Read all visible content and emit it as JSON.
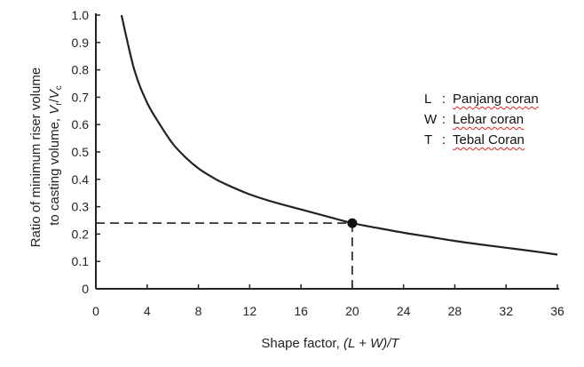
{
  "chart_data": {
    "type": "line",
    "xlabel": "Shape factor, (L + W)/T",
    "ylabel": "Ratio of minimum riser volume to casting volume, Vr/Vc",
    "ylabel_line1": "Ratio of minimum riser volume",
    "ylabel_line2_prefix": "to casting volume, ",
    "ylabel_var1": "V",
    "ylabel_sub1": "r",
    "ylabel_slash": "/",
    "ylabel_var2": "V",
    "ylabel_sub2": "c",
    "xlabel_prefix": "Shape factor, ",
    "xlabel_var": "(L + W)/T",
    "xlim": [
      0,
      36
    ],
    "ylim": [
      0,
      1.0
    ],
    "x_ticks": [
      "0",
      "4",
      "8",
      "12",
      "16",
      "20",
      "24",
      "28",
      "32",
      "36"
    ],
    "y_ticks": [
      "0",
      "0.1",
      "0.2",
      "0.3",
      "0.4",
      "0.5",
      "0.6",
      "0.7",
      "0.8",
      "0.9",
      "1.0"
    ],
    "series": [
      {
        "x": [
          2,
          3,
          4,
          5,
          6,
          7,
          8,
          9,
          10,
          12,
          14,
          16,
          18,
          20,
          22,
          24,
          26,
          28,
          30,
          32,
          34,
          36
        ],
        "y": [
          1.0,
          0.8,
          0.68,
          0.6,
          0.53,
          0.48,
          0.44,
          0.41,
          0.385,
          0.345,
          0.315,
          0.29,
          0.265,
          0.24,
          0.222,
          0.205,
          0.19,
          0.175,
          0.162,
          0.15,
          0.138,
          0.125
        ]
      }
    ],
    "highlight_point": {
      "x": 20,
      "y": 0.24
    },
    "grid": false
  },
  "legend": [
    {
      "key": "L",
      "sep": ":",
      "text": "Panjang coran"
    },
    {
      "key": "W",
      "sep": ":",
      "text": "Lebar coran"
    },
    {
      "key": "T",
      "sep": ":",
      "text": "Tebal Coran"
    }
  ]
}
